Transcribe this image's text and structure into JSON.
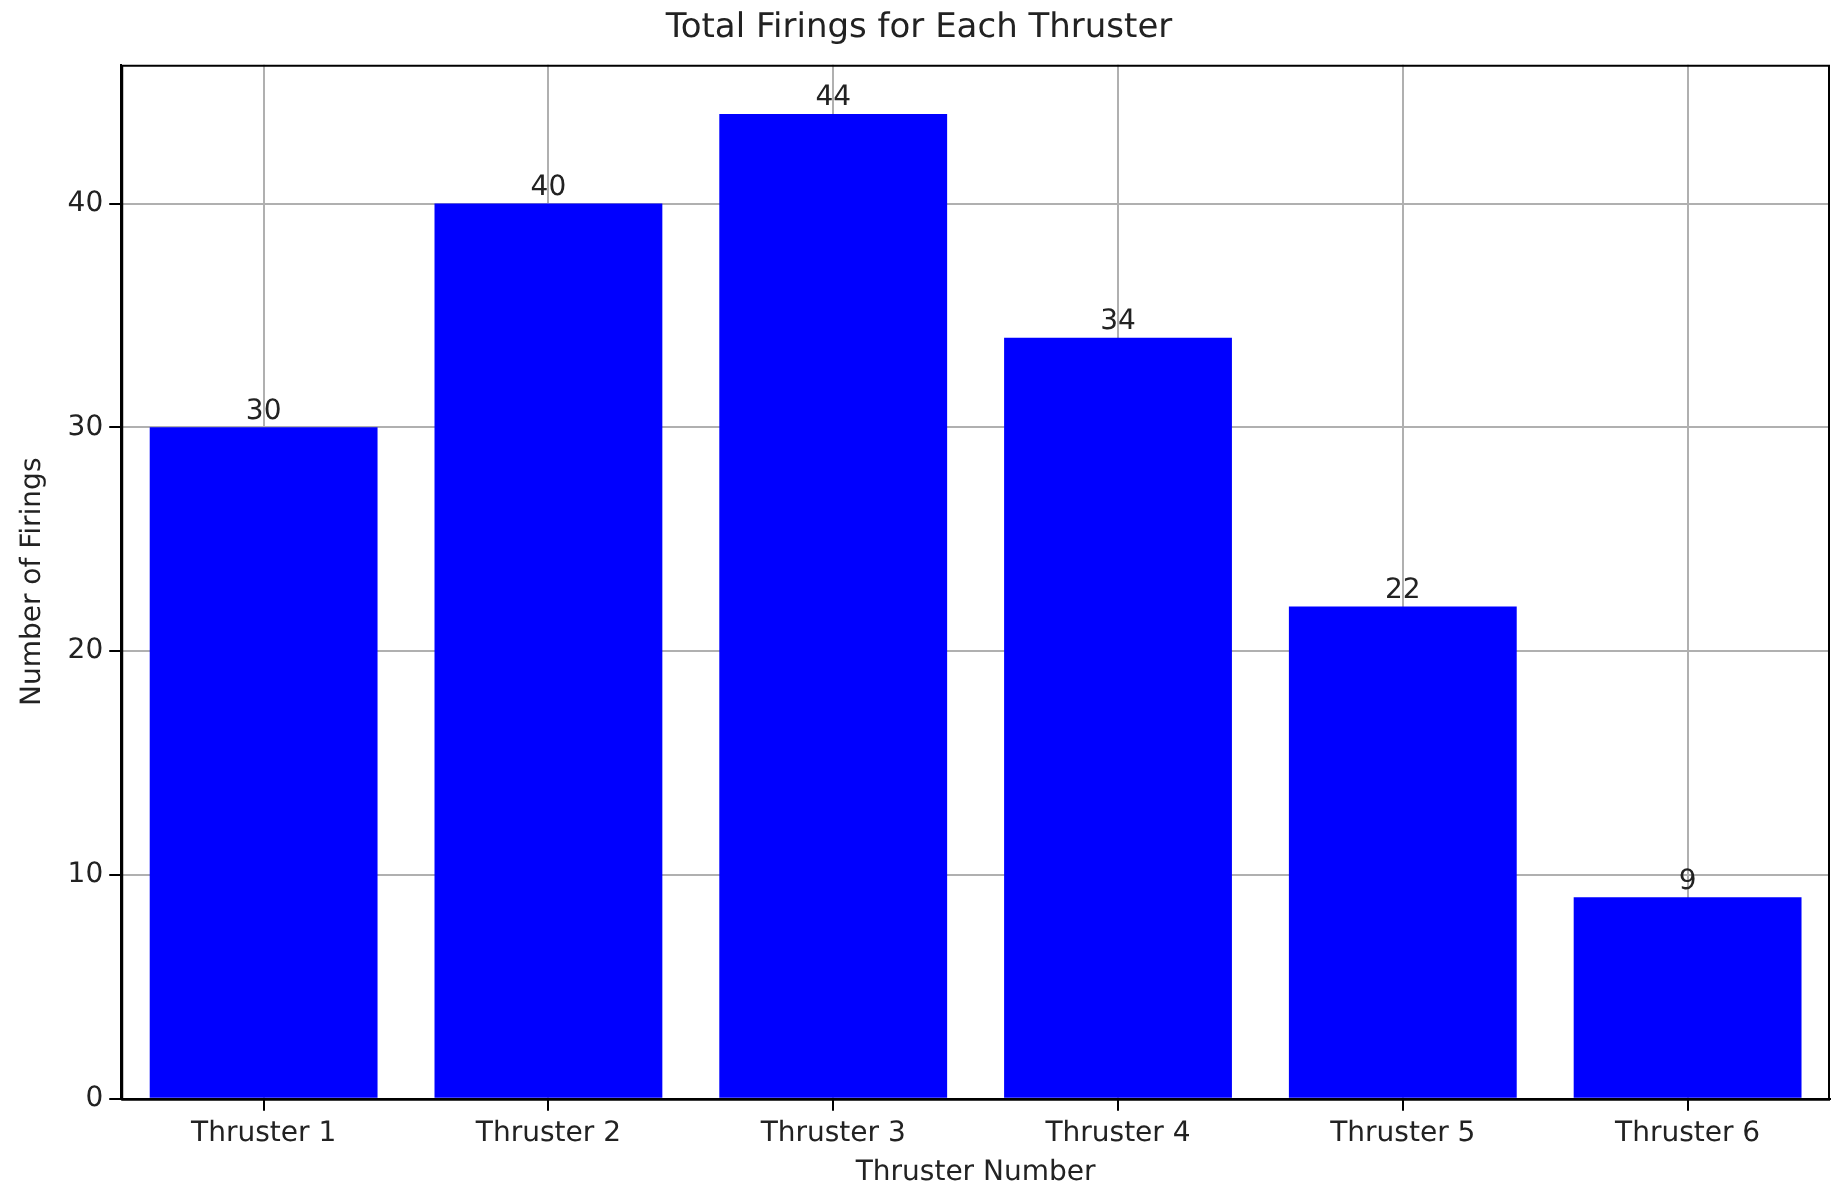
{
  "chart_data": {
    "type": "bar",
    "title": "Total Firings for Each Thruster",
    "xlabel": "Thruster Number",
    "ylabel": "Number of Firings",
    "categories": [
      "Thruster 1",
      "Thruster 2",
      "Thruster 3",
      "Thruster 4",
      "Thruster 5",
      "Thruster 6"
    ],
    "values": [
      30,
      40,
      44,
      34,
      22,
      9
    ],
    "color": "#0000ff",
    "ylim": [
      0,
      46.2
    ],
    "yticks": [
      0,
      10,
      20,
      30,
      40
    ],
    "grid": true,
    "data_labels": true
  }
}
